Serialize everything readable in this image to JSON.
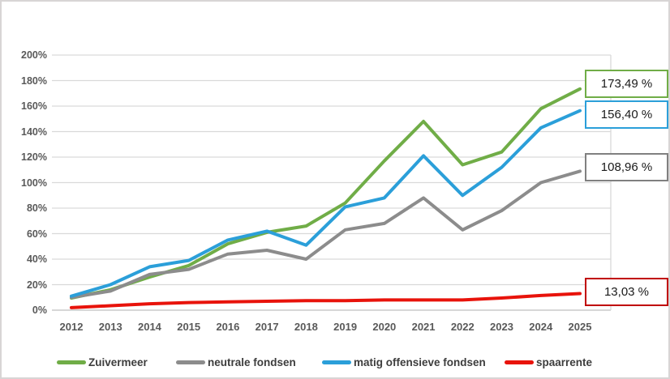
{
  "figure": {
    "background": "#ffffff",
    "border_color": "#d8d5d5",
    "gridline_color": "#d9d9d9",
    "axis_line_color": "#bfbfbf",
    "tick_label_color": "#595959"
  },
  "chart_data": {
    "type": "line",
    "title": "",
    "xlabel": "",
    "ylabel": "",
    "x": [
      2012,
      2013,
      2014,
      2015,
      2016,
      2017,
      2018,
      2019,
      2020,
      2021,
      2022,
      2023,
      2024,
      2025
    ],
    "y_ticks": [
      "0%",
      "20%",
      "40%",
      "60%",
      "80%",
      "100%",
      "120%",
      "140%",
      "160%",
      "180%",
      "200%"
    ],
    "ylim": [
      0,
      200
    ],
    "grid": true,
    "legend_position": "bottom",
    "series": [
      {
        "name": "Zuivermeer",
        "color": "#70AD47",
        "box_color": "#70AD47",
        "final_label": "173,49 %",
        "values": [
          9.5,
          16,
          26,
          35,
          52,
          61,
          66,
          84,
          117,
          148,
          114,
          124,
          158,
          173.49
        ]
      },
      {
        "name": "neutrale fondsen",
        "color": "#8C8C8C",
        "box_color": "#808080",
        "final_label": "108,96 %",
        "values": [
          10,
          15,
          28,
          32,
          44,
          47,
          40,
          63,
          68,
          88,
          63,
          78,
          100,
          108.96
        ]
      },
      {
        "name": "matig offensieve fondsen",
        "color": "#2B9FD9",
        "box_color": "#2B9FD9",
        "final_label": "156,40 %",
        "values": [
          11,
          20,
          34,
          39,
          55,
          62,
          51,
          81,
          88,
          121,
          90,
          112,
          143,
          156.4
        ]
      },
      {
        "name": "spaarrente",
        "color": "#E8130B",
        "box_color": "#C00000",
        "final_label": "13,03 %",
        "values": [
          2,
          3.5,
          5,
          6,
          6.5,
          7,
          7.5,
          7.5,
          8,
          8,
          8,
          9.5,
          11.5,
          13.03
        ]
      }
    ]
  }
}
